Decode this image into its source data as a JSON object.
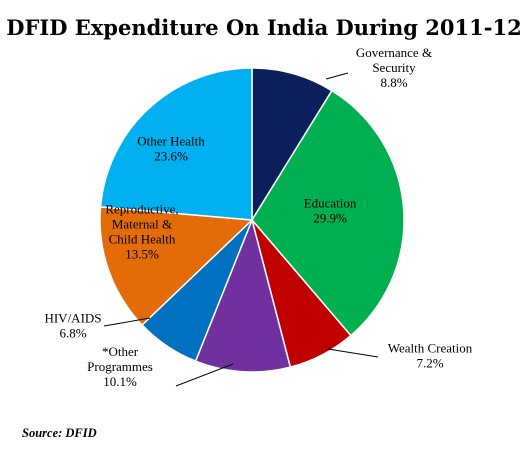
{
  "chart_data": {
    "type": "pie",
    "title": "DFID Expenditure On India During 2011-12",
    "source": "Source: DFID",
    "slices": [
      {
        "label": [
          "Governance &",
          "Security"
        ],
        "value_label": "8.8%",
        "value": 8.8,
        "color": "#0A1F5C"
      },
      {
        "label": [
          "Education"
        ],
        "value_label": "29.9%",
        "value": 29.9,
        "color": "#00B050"
      },
      {
        "label": [
          "Wealth Creation"
        ],
        "value_label": "7.2%",
        "value": 7.2,
        "color": "#C00000"
      },
      {
        "label": [
          "*Other",
          "Programmes"
        ],
        "value_label": "10.1%",
        "value": 10.1,
        "color": "#7030A0"
      },
      {
        "label": [
          "HIV/AIDS"
        ],
        "value_label": "6.8%",
        "value": 6.8,
        "color": "#0070C0"
      },
      {
        "label": [
          "Reproductive,",
          "Maternal &",
          "Child Health"
        ],
        "value_label": "13.5%",
        "value": 13.5,
        "color": "#E36C09"
      },
      {
        "label": [
          "Other Health"
        ],
        "value_label": "23.6%",
        "value": 23.6,
        "color": "#00B0F0"
      }
    ]
  }
}
